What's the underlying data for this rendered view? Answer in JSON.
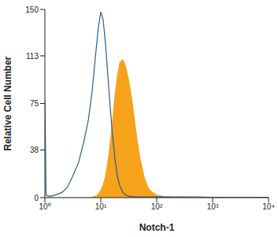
{
  "chart_data": {
    "type": "line",
    "x_label": "Notch-1",
    "y_label": "Relative Cell Number",
    "log": "x",
    "grid": false,
    "xlim": [
      1,
      10000
    ],
    "xticks": [
      {
        "value": 1,
        "label": "10⁰"
      },
      {
        "value": 10,
        "label": "10¹"
      },
      {
        "value": 100,
        "label": "10²"
      },
      {
        "value": 1000,
        "label": "10³"
      },
      {
        "value": 10000,
        "label": "10⁴"
      }
    ],
    "ylim": [
      0,
      150
    ],
    "yticks": [
      0,
      38,
      75,
      113,
      150
    ],
    "x": [
      1,
      1.05,
      1.2,
      1.5,
      2,
      2.5,
      3,
      4,
      5,
      6,
      7,
      8,
      9,
      10,
      11,
      12,
      13,
      14,
      16,
      18,
      20,
      22,
      25,
      28,
      32,
      36,
      40,
      45,
      50,
      60,
      70,
      80,
      100,
      130,
      200,
      500,
      1000,
      3000,
      10000
    ],
    "series": [
      {
        "type": "area",
        "color": "#f7a21b",
        "values": [
          0,
          0,
          0,
          0,
          0,
          0,
          0,
          0,
          0,
          0,
          0.5,
          1,
          3,
          6,
          10,
          16,
          25,
          35,
          58,
          82,
          98,
          108,
          110,
          104,
          92,
          78,
          62,
          45,
          32,
          16,
          8,
          5,
          2,
          1,
          0.3,
          0,
          0,
          0,
          0
        ]
      },
      {
        "type": "line",
        "color": "#2a5d8a",
        "values": [
          78,
          2,
          1,
          2,
          4,
          8,
          15,
          28,
          45,
          62,
          85,
          112,
          135,
          148,
          142,
          125,
          105,
          85,
          52,
          30,
          16,
          9,
          4,
          2,
          1,
          1,
          0.5,
          0.5,
          0.5,
          0.5,
          0.5,
          0.5,
          0.5,
          0.5,
          0.5,
          0.5,
          0.3,
          0.3,
          0.2
        ]
      }
    ]
  }
}
